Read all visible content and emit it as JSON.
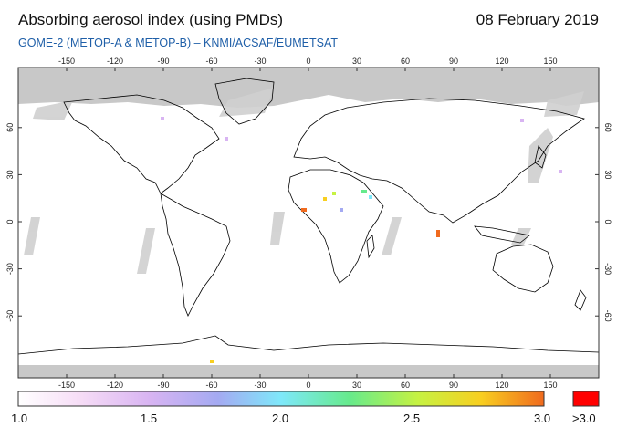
{
  "header": {
    "title": "Absorbing aerosol index (using PMDs)",
    "date": "08 February 2019",
    "subtitle": "GOME-2 (METOP-A & METOP-B)  –  KNMI/ACSAF/EUMETSAT"
  },
  "map": {
    "lon_ticks": [
      "-150",
      "-120",
      "-90",
      "-60",
      "-30",
      "0",
      "30",
      "60",
      "90",
      "120",
      "150"
    ],
    "lat_ticks_left": [
      "60",
      "30",
      "0",
      "-30",
      "-60"
    ],
    "lat_ticks_right": [
      "60",
      "30",
      "0",
      "-30",
      "-60"
    ],
    "colors": {
      "no_data": "#c8c8c8",
      "coast": "#000000",
      "frame": "#333333"
    }
  },
  "colorbar": {
    "labels": [
      "1.0",
      "1.5",
      "2.0",
      "2.5",
      "3.0"
    ],
    "over_label": ">3.0",
    "over_color": "#ff0000",
    "gradient": [
      "#ffffff",
      "#f4d4f4",
      "#c8a8f0",
      "#a0a8f0",
      "#78e8f8",
      "#60e890",
      "#c8f040",
      "#f8d020",
      "#f07020"
    ]
  }
}
